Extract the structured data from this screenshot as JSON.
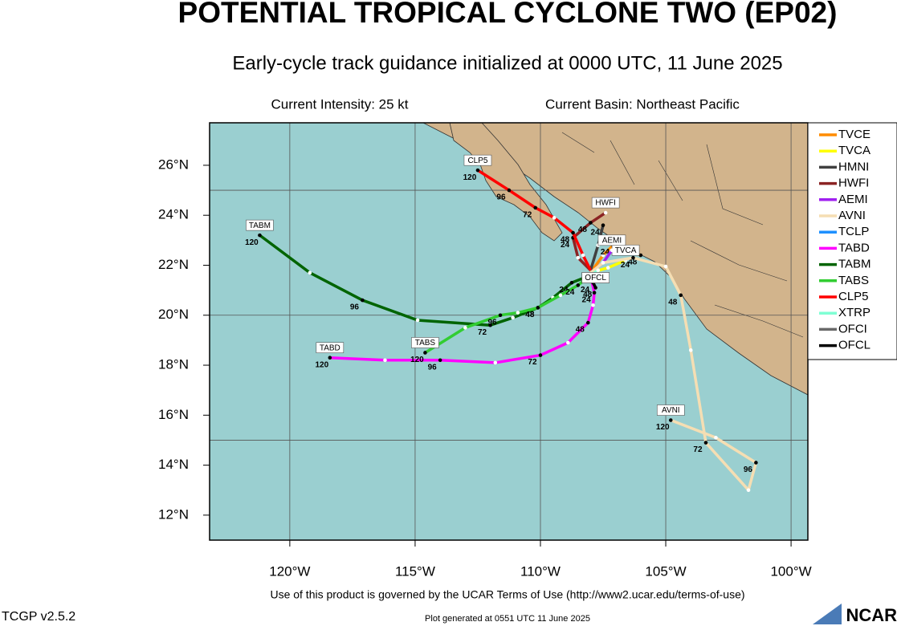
{
  "chart_data": {
    "type": "track-map",
    "title": "POTENTIAL TROPICAL CYCLONE TWO (EP02)",
    "subtitle": "Early-cycle track guidance initialized at 0000 UTC, 11 June 2025",
    "intensity": "Current Intensity: 25 kt",
    "basin": "Current Basin: Northeast Pacific",
    "footer": "Use of this product is governed by the UCAR Terms of Use (http://www2.ucar.edu/terms-of-use)",
    "version": "TCGP v2.5.2",
    "generated": "Plot generated at 0551 UTC   11 June 2025",
    "logo": "NCAR",
    "xlim": [
      -123.2,
      -99.33
    ],
    "ylim": [
      11.0,
      27.7
    ],
    "xticks": [
      {
        "value": -120,
        "label": "120°W"
      },
      {
        "value": -115,
        "label": "115°W"
      },
      {
        "value": -110,
        "label": "110°W"
      },
      {
        "value": -105,
        "label": "105°W"
      },
      {
        "value": -100,
        "label": "100°W"
      }
    ],
    "yticks": [
      {
        "value": 12,
        "label": "12°N"
      },
      {
        "value": 14,
        "label": "14°N"
      },
      {
        "value": 16,
        "label": "16°N"
      },
      {
        "value": 18,
        "label": "18°N"
      },
      {
        "value": 20,
        "label": "20°N"
      },
      {
        "value": 22,
        "label": "22°N"
      },
      {
        "value": 24,
        "label": "24°N"
      },
      {
        "value": 26,
        "label": "26°N"
      }
    ],
    "grid_lat": [
      15,
      20,
      25
    ],
    "legend": "right",
    "series": [
      {
        "name": "TVCE",
        "color": "#ff8c00",
        "x": [
          -108.0,
          -107.5,
          -107.1,
          -106.0
        ],
        "values": [
          21.7,
          22.4,
          22.8,
          22.4
        ],
        "hours": [
          null,
          null,
          24,
          48
        ],
        "end_label": false
      },
      {
        "name": "TVCA",
        "color": "#ffff00",
        "x": [
          -108.0,
          -107.3,
          -106.6
        ],
        "values": [
          21.7,
          21.9,
          22.2
        ],
        "hours": [
          null,
          null,
          null
        ],
        "end_label": true
      },
      {
        "name": "HMNI",
        "color": "#404040",
        "x": [
          -108.0,
          -107.7,
          -107.5
        ],
        "values": [
          21.8,
          22.8,
          23.6
        ],
        "hours": [
          null,
          null,
          24
        ],
        "end_label": false
      },
      {
        "name": "HWFI",
        "color": "#8b2323",
        "x": [
          -108.0,
          -108.5,
          -108.7,
          -108.0,
          -107.4
        ],
        "values": [
          21.8,
          22.3,
          23.1,
          23.7,
          24.1
        ],
        "hours": [
          null,
          null,
          24,
          48,
          null
        ],
        "end_label": true
      },
      {
        "name": "AEMI",
        "color": "#a020f0",
        "x": [
          -108.0,
          -107.5,
          -107.15
        ],
        "values": [
          21.7,
          22.1,
          22.6
        ],
        "hours": [
          null,
          null,
          null
        ],
        "end_label": true
      },
      {
        "name": "AVNI",
        "color": "#f5deb3",
        "x": [
          -108.0,
          -107.5,
          -106.3,
          -105.0,
          -104.4,
          -104.0,
          -103.4,
          -101.7,
          -101.4,
          -103.0,
          -104.8
        ],
        "values": [
          21.7,
          22.1,
          22.3,
          21.95,
          20.8,
          18.6,
          14.9,
          13.0,
          14.1,
          15.1,
          15.8
        ],
        "hours": [
          null,
          null,
          24,
          null,
          48,
          null,
          72,
          null,
          96,
          null,
          120
        ],
        "end_label": true
      },
      {
        "name": "TCLP",
        "color": "#1e90ff",
        "x": [
          -108.0,
          -107.8
        ],
        "values": [
          21.6,
          21.7
        ],
        "hours": [
          null,
          null
        ],
        "end_label": false
      },
      {
        "name": "TABD",
        "color": "#ff00ff",
        "x": [
          -108.0,
          -107.85,
          -107.9,
          -108.1,
          -108.9,
          -110.0,
          -111.8,
          -114.0,
          -116.2,
          -118.4
        ],
        "values": [
          21.6,
          20.9,
          20.4,
          19.7,
          18.9,
          18.4,
          18.1,
          18.2,
          18.2,
          18.3
        ],
        "hours": [
          null,
          24,
          null,
          48,
          null,
          72,
          null,
          96,
          null,
          120
        ],
        "end_label": true
      },
      {
        "name": "TABM",
        "color": "#006400",
        "x": [
          -108.0,
          -108.75,
          -109.5,
          -110.1,
          -111.1,
          -112.0,
          -114.9,
          -117.1,
          -119.2,
          -121.2
        ],
        "values": [
          21.6,
          21.3,
          20.7,
          20.3,
          19.9,
          19.6,
          19.8,
          20.6,
          21.7,
          23.2
        ],
        "hours": [
          null,
          24,
          null,
          48,
          null,
          72,
          null,
          96,
          null,
          120
        ],
        "end_label": true
      },
      {
        "name": "TABS",
        "color": "#32cd32",
        "x": [
          -108.0,
          -108.5,
          -109.2,
          -110.1,
          -110.9,
          -111.6,
          -113.0,
          -114.6
        ],
        "values": [
          21.6,
          21.2,
          20.8,
          20.3,
          20.1,
          20.0,
          19.5,
          18.5
        ],
        "hours": [
          null,
          24,
          null,
          48,
          null,
          96,
          null,
          120
        ],
        "end_label": true
      },
      {
        "name": "CLP5",
        "color": "#ff0000",
        "x": [
          -108.0,
          -108.3,
          -108.7,
          -109.45,
          -110.2,
          -111.25,
          -112.5
        ],
        "values": [
          21.8,
          22.4,
          23.3,
          23.9,
          24.3,
          25.0,
          25.8
        ],
        "hours": [
          null,
          null,
          48,
          null,
          72,
          96,
          120
        ],
        "end_label": true
      },
      {
        "name": "XTRP",
        "color": "#7fffd4",
        "x": [
          -108.0,
          -107.7
        ],
        "values": [
          21.6,
          21.8
        ],
        "hours": [
          null,
          null
        ],
        "end_label": false
      },
      {
        "name": "OFCI",
        "color": "#696969",
        "x": [
          -108.0,
          -107.9,
          -107.8
        ],
        "values": [
          21.6,
          21.35,
          21.1
        ],
        "hours": [
          null,
          null,
          null
        ],
        "end_label": true
      },
      {
        "name": "OFCL",
        "color": "#000000",
        "x": [
          -108.0,
          -107.9,
          -107.8
        ],
        "values": [
          21.6,
          21.3,
          21.1
        ],
        "hours": [
          null,
          24,
          48
        ],
        "end_label": true
      }
    ]
  }
}
